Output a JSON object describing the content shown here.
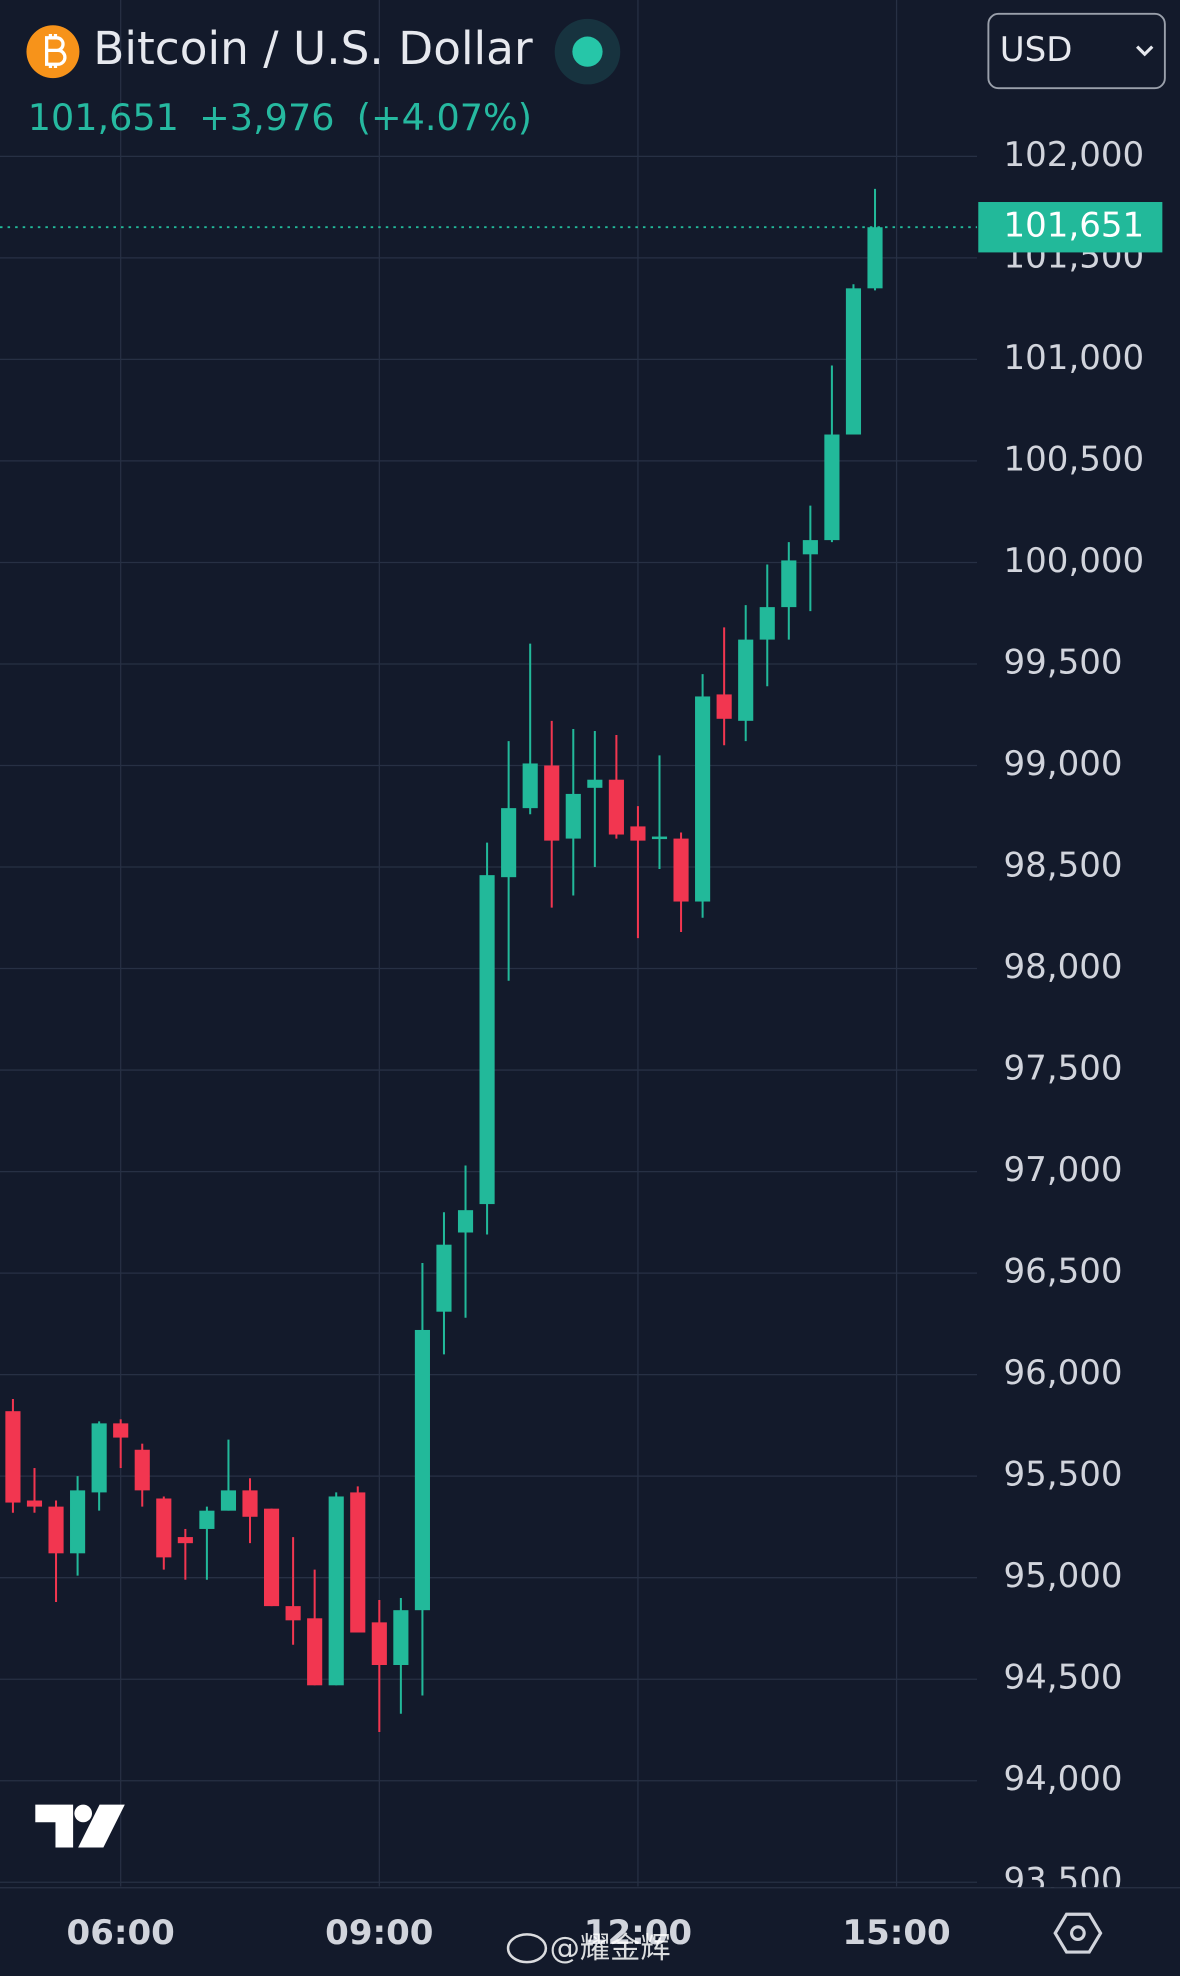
{
  "chart_data": {
    "type": "candlestick",
    "title": "Bitcoin / U.S. Dollar",
    "currency": "USD",
    "last_price": {
      "value": 101651,
      "label": "101,651"
    },
    "change": {
      "value": 3976,
      "label": "+3,976"
    },
    "change_pct": {
      "value": 4.07,
      "label": "(+4.07%)"
    },
    "watermark": "@耀金辉",
    "up_color": "#22b99a",
    "down_color": "#f23650",
    "grid": true,
    "x": [
      "04:45",
      "05:00",
      "05:15",
      "05:30",
      "05:45",
      "06:00",
      "06:15",
      "06:30",
      "06:45",
      "07:00",
      "07:15",
      "07:30",
      "07:45",
      "08:00",
      "08:15",
      "08:30",
      "08:45",
      "09:00",
      "09:15",
      "09:30",
      "09:45",
      "10:00",
      "10:15",
      "10:30",
      "10:45",
      "11:00",
      "11:15",
      "11:30",
      "11:45",
      "12:00",
      "12:15",
      "12:30",
      "12:45",
      "13:00",
      "13:15",
      "13:30",
      "13:45",
      "14:00",
      "14:15",
      "14:30",
      "14:45"
    ],
    "open": [
      95820,
      95380,
      95350,
      95120,
      95420,
      95760,
      95630,
      95390,
      95200,
      95240,
      95330,
      95430,
      95340,
      94860,
      94800,
      94470,
      95420,
      94780,
      94570,
      94840,
      96310,
      96700,
      96840,
      98450,
      98790,
      99000,
      98640,
      98890,
      98930,
      98700,
      98640,
      98640,
      98330,
      99350,
      99220,
      99620,
      99780,
      100040,
      100110,
      100630,
      101350
    ],
    "high": [
      95880,
      95540,
      95380,
      95500,
      95770,
      95780,
      95660,
      95400,
      95240,
      95350,
      95680,
      95490,
      95340,
      95200,
      95040,
      95420,
      95450,
      94890,
      94900,
      96550,
      96800,
      97030,
      98620,
      99120,
      99600,
      99220,
      99180,
      99170,
      99150,
      98800,
      99050,
      98670,
      99450,
      99680,
      99790,
      99990,
      100100,
      100280,
      100970,
      101370,
      101840
    ],
    "low": [
      95320,
      95320,
      94880,
      95010,
      95330,
      95540,
      95350,
      95040,
      94990,
      94990,
      95330,
      95170,
      94860,
      94670,
      94470,
      94470,
      94730,
      94240,
      94330,
      94420,
      96100,
      96280,
      96690,
      97940,
      98760,
      98300,
      98360,
      98500,
      98640,
      98150,
      98490,
      98180,
      98250,
      99100,
      99120,
      99390,
      99620,
      99760,
      100100,
      100630,
      101340
    ],
    "close": [
      95370,
      95350,
      95120,
      95430,
      95760,
      95690,
      95430,
      95100,
      95170,
      95330,
      95430,
      95300,
      94860,
      94790,
      94470,
      95400,
      94730,
      94570,
      94840,
      96220,
      96640,
      96810,
      98460,
      98790,
      99010,
      98630,
      98860,
      98930,
      98660,
      98630,
      98650,
      98330,
      99340,
      99230,
      99620,
      99780,
      100010,
      100110,
      100630,
      101350,
      101651
    ],
    "xlim": [
      "04:36",
      "15:56"
    ],
    "xticks": [
      "06:00",
      "09:00",
      "12:00",
      "15:00"
    ],
    "ylim": [
      93479,
      102770
    ],
    "yticks": [
      {
        "value": 93500,
        "label": "93,500"
      },
      {
        "value": 94000,
        "label": "94,000"
      },
      {
        "value": 94500,
        "label": "94,500"
      },
      {
        "value": 95000,
        "label": "95,000"
      },
      {
        "value": 95500,
        "label": "95,500"
      },
      {
        "value": 96000,
        "label": "96,000"
      },
      {
        "value": 96500,
        "label": "96,500"
      },
      {
        "value": 97000,
        "label": "97,000"
      },
      {
        "value": 97500,
        "label": "97,500"
      },
      {
        "value": 98000,
        "label": "98,000"
      },
      {
        "value": 98500,
        "label": "98,500"
      },
      {
        "value": 99000,
        "label": "99,000"
      },
      {
        "value": 99500,
        "label": "99,500"
      },
      {
        "value": 100000,
        "label": "100,000"
      },
      {
        "value": 100500,
        "label": "100,500"
      },
      {
        "value": 101000,
        "label": "101,000"
      },
      {
        "value": 101500,
        "label": "101,500"
      },
      {
        "value": 102000,
        "label": "102,000"
      }
    ]
  }
}
